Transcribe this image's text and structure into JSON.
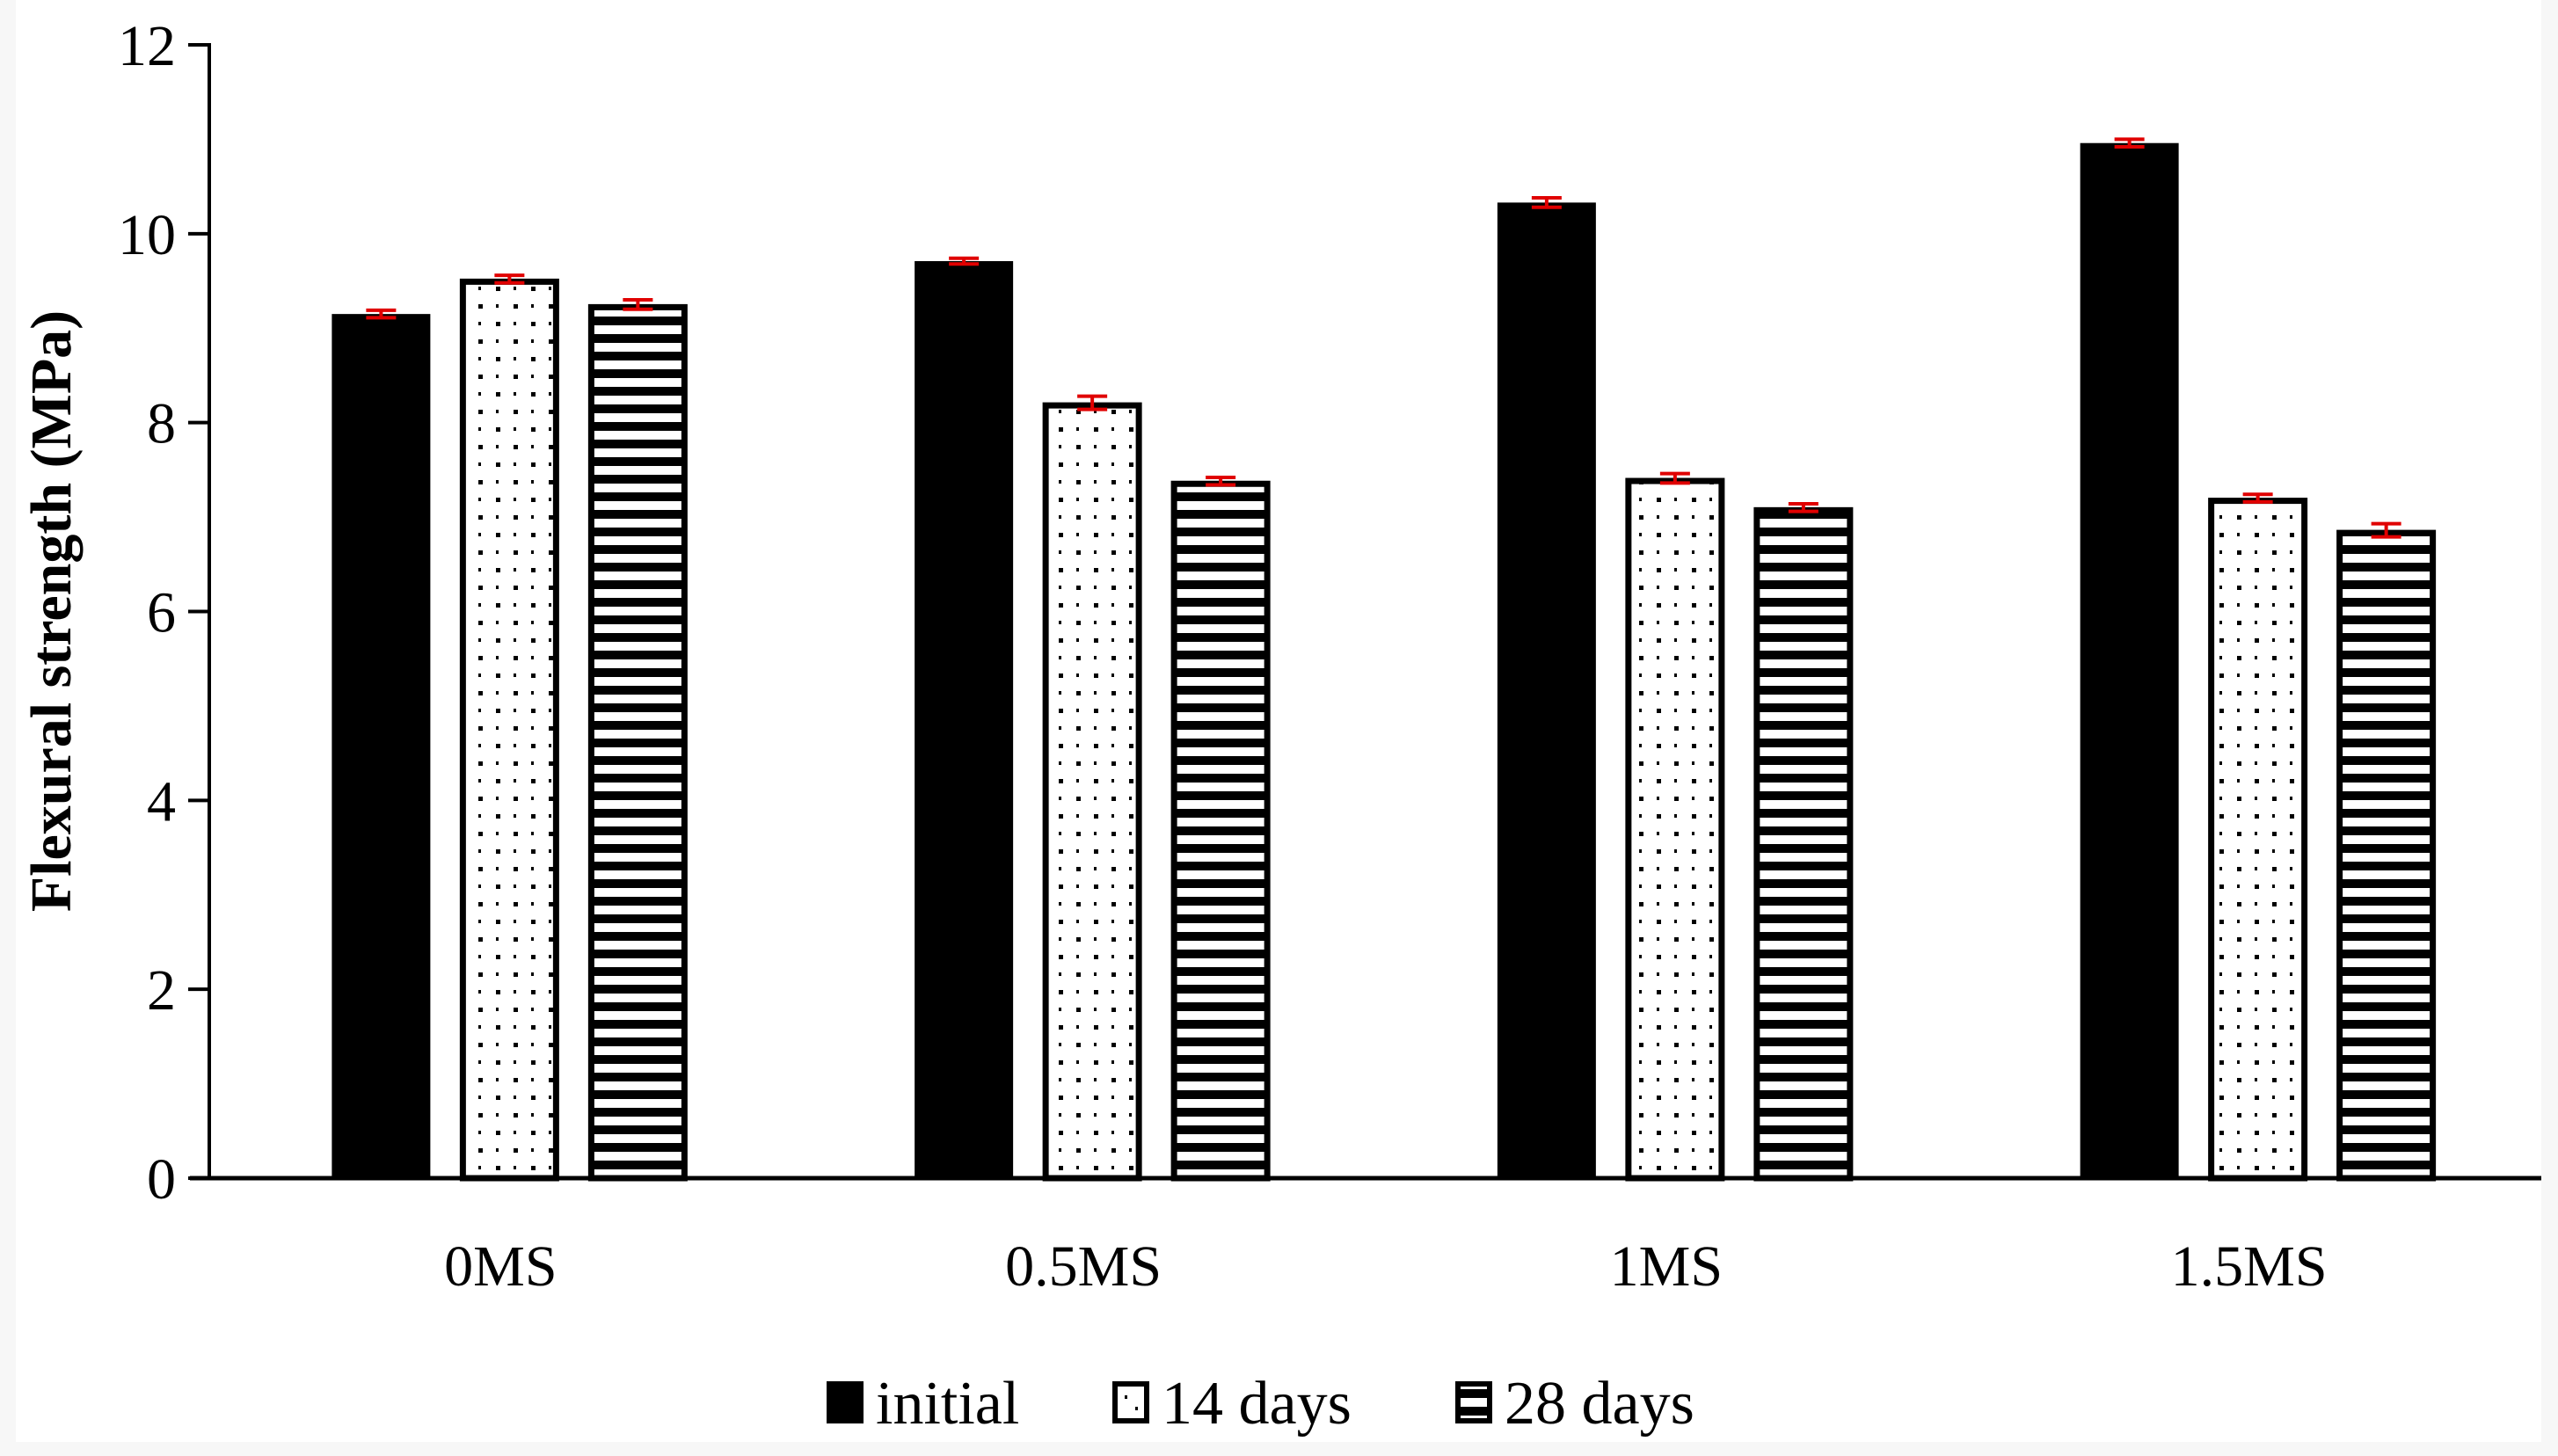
{
  "chart_data": {
    "type": "bar",
    "title": "",
    "xlabel": "",
    "ylabel": "Flexural strength (MPa)",
    "ylim": [
      0,
      12
    ],
    "yticks": [
      0,
      2,
      4,
      6,
      8,
      10,
      12
    ],
    "categories": [
      "0MS",
      "0.5MS",
      "1MS",
      "1.5MS"
    ],
    "series": [
      {
        "name": "initial",
        "pattern": "solid",
        "values": [
          9.15,
          9.71,
          10.33,
          10.96
        ],
        "errors": [
          0.04,
          0.03,
          0.05,
          0.04
        ]
      },
      {
        "name": "14 days",
        "pattern": "dots",
        "values": [
          9.52,
          8.21,
          7.41,
          7.2
        ],
        "errors": [
          0.04,
          0.07,
          0.05,
          0.04
        ]
      },
      {
        "name": "28 days",
        "pattern": "horizontal-lines",
        "values": [
          9.25,
          7.38,
          7.1,
          6.86
        ],
        "errors": [
          0.05,
          0.04,
          0.04,
          0.07
        ]
      }
    ],
    "legend": "bottom",
    "grid": false,
    "colors": {
      "bar": "#000000",
      "error_bar": "#e00000",
      "background": "#ffffff"
    }
  }
}
